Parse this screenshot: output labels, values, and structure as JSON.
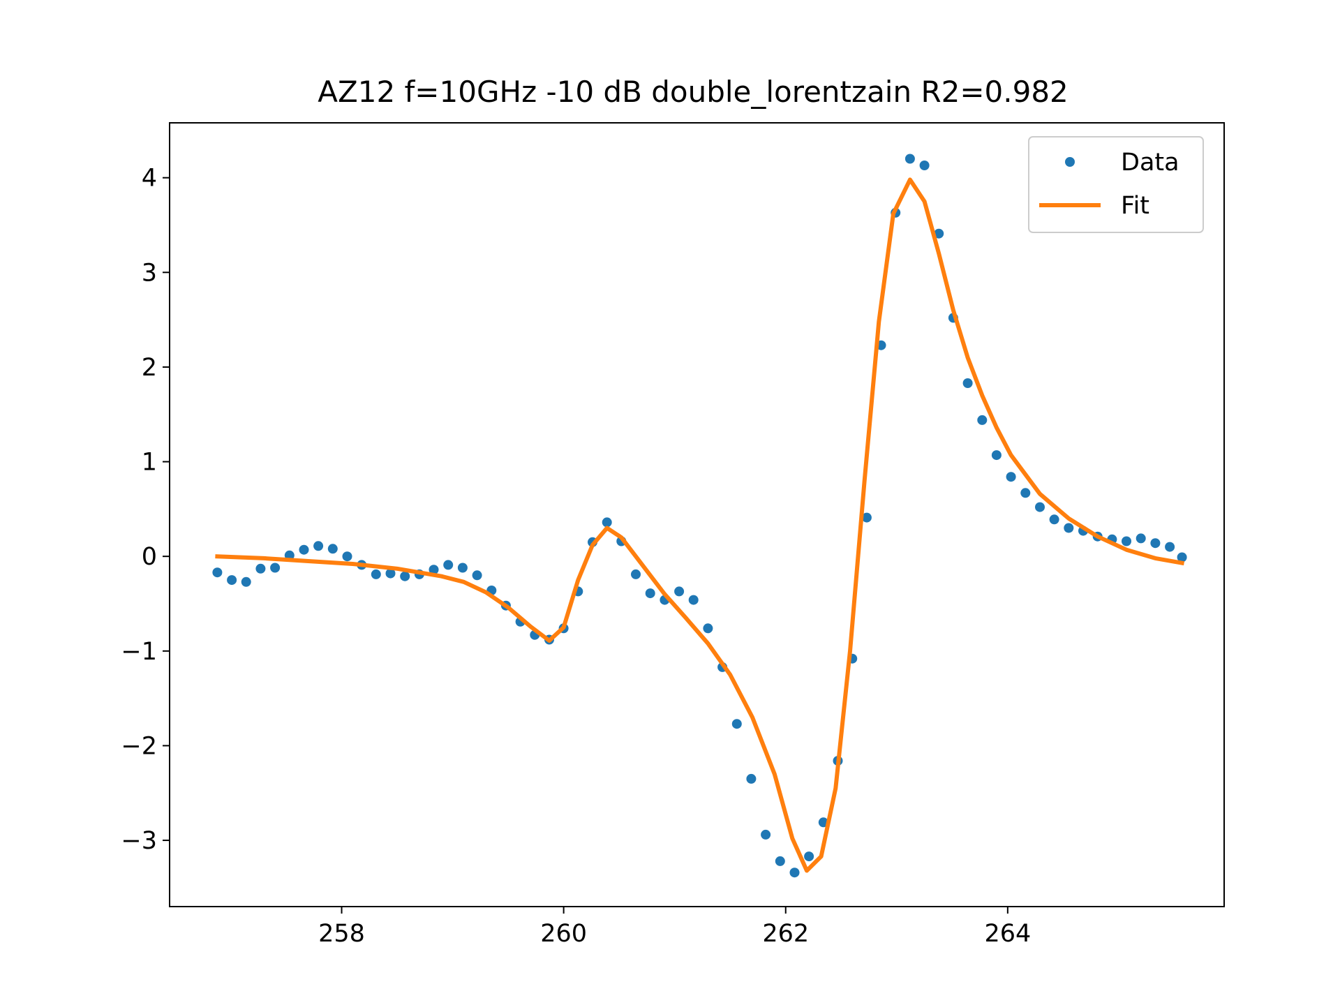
{
  "chart_data": {
    "type": "scatter",
    "title": "AZ12 f=10GHz -10 dB double_lorentzain R2=0.982",
    "xlabel": "",
    "ylabel": "",
    "xlim": [
      256.45,
      265.95
    ],
    "ylim": [
      -3.7,
      4.58
    ],
    "xticks": [
      258,
      260,
      262,
      264
    ],
    "yticks": [
      -3,
      -2,
      -1,
      0,
      1,
      2,
      3,
      4
    ],
    "xtick_labels": [
      "258",
      "260",
      "262",
      "264"
    ],
    "ytick_labels": [
      "−3",
      "−2",
      "−1",
      "0",
      "1",
      "2",
      "3",
      "4"
    ],
    "grid": false,
    "legend_position": "top-right",
    "series": [
      {
        "name": "Data",
        "kind": "points",
        "color": "#1f77b4",
        "x": [
          256.88,
          257.01,
          257.14,
          257.27,
          257.4,
          257.53,
          257.66,
          257.79,
          257.92,
          258.05,
          258.18,
          258.31,
          258.44,
          258.57,
          258.7,
          258.83,
          258.96,
          259.09,
          259.22,
          259.35,
          259.48,
          259.61,
          259.74,
          259.87,
          260.0,
          260.13,
          260.26,
          260.39,
          260.52,
          260.65,
          260.78,
          260.91,
          261.04,
          261.17,
          261.3,
          261.43,
          261.56,
          261.69,
          261.82,
          261.95,
          262.08,
          262.21,
          262.34,
          262.47,
          262.6,
          262.73,
          262.86,
          262.99,
          263.12,
          263.25,
          263.38,
          263.51,
          263.64,
          263.77,
          263.9,
          264.03,
          264.16,
          264.29,
          264.42,
          264.55,
          264.68,
          264.81,
          264.94,
          265.07,
          265.2,
          265.33,
          265.46,
          265.57
        ],
        "y": [
          -0.17,
          -0.25,
          -0.27,
          -0.13,
          -0.12,
          0.01,
          0.07,
          0.11,
          0.08,
          0.0,
          -0.09,
          -0.19,
          -0.18,
          -0.21,
          -0.19,
          -0.14,
          -0.09,
          -0.12,
          -0.2,
          -0.36,
          -0.52,
          -0.69,
          -0.83,
          -0.88,
          -0.76,
          -0.37,
          0.15,
          0.36,
          0.16,
          -0.19,
          -0.39,
          -0.46,
          -0.37,
          -0.46,
          -0.76,
          -1.17,
          -1.77,
          -2.35,
          -2.94,
          -3.22,
          -3.34,
          -3.17,
          -2.81,
          -2.16,
          -1.08,
          0.41,
          2.23,
          3.63,
          4.2,
          4.13,
          3.41,
          2.52,
          1.83,
          1.44,
          1.07,
          0.84,
          0.67,
          0.52,
          0.39,
          0.3,
          0.27,
          0.21,
          0.18,
          0.16,
          0.19,
          0.14,
          0.1,
          -0.01
        ]
      },
      {
        "name": "Fit",
        "kind": "line",
        "color": "#ff7f0e",
        "x": [
          256.88,
          257.3,
          257.7,
          258.1,
          258.5,
          258.9,
          259.1,
          259.3,
          259.5,
          259.7,
          259.87,
          260.0,
          260.13,
          260.26,
          260.39,
          260.52,
          260.65,
          260.78,
          260.91,
          261.1,
          261.3,
          261.5,
          261.7,
          261.9,
          262.06,
          262.19,
          262.32,
          262.45,
          262.58,
          262.71,
          262.84,
          262.97,
          263.12,
          263.25,
          263.38,
          263.51,
          263.64,
          263.77,
          263.9,
          264.03,
          264.29,
          264.55,
          264.81,
          265.07,
          265.33,
          265.57
        ],
        "y": [
          0.0,
          -0.02,
          -0.05,
          -0.08,
          -0.13,
          -0.21,
          -0.27,
          -0.38,
          -0.54,
          -0.74,
          -0.89,
          -0.75,
          -0.25,
          0.12,
          0.3,
          0.2,
          0.0,
          -0.2,
          -0.4,
          -0.65,
          -0.92,
          -1.25,
          -1.7,
          -2.3,
          -2.98,
          -3.32,
          -3.17,
          -2.45,
          -1.0,
          0.8,
          2.48,
          3.62,
          3.98,
          3.75,
          3.2,
          2.6,
          2.1,
          1.7,
          1.36,
          1.07,
          0.66,
          0.4,
          0.21,
          0.07,
          -0.02,
          -0.07
        ]
      }
    ]
  }
}
